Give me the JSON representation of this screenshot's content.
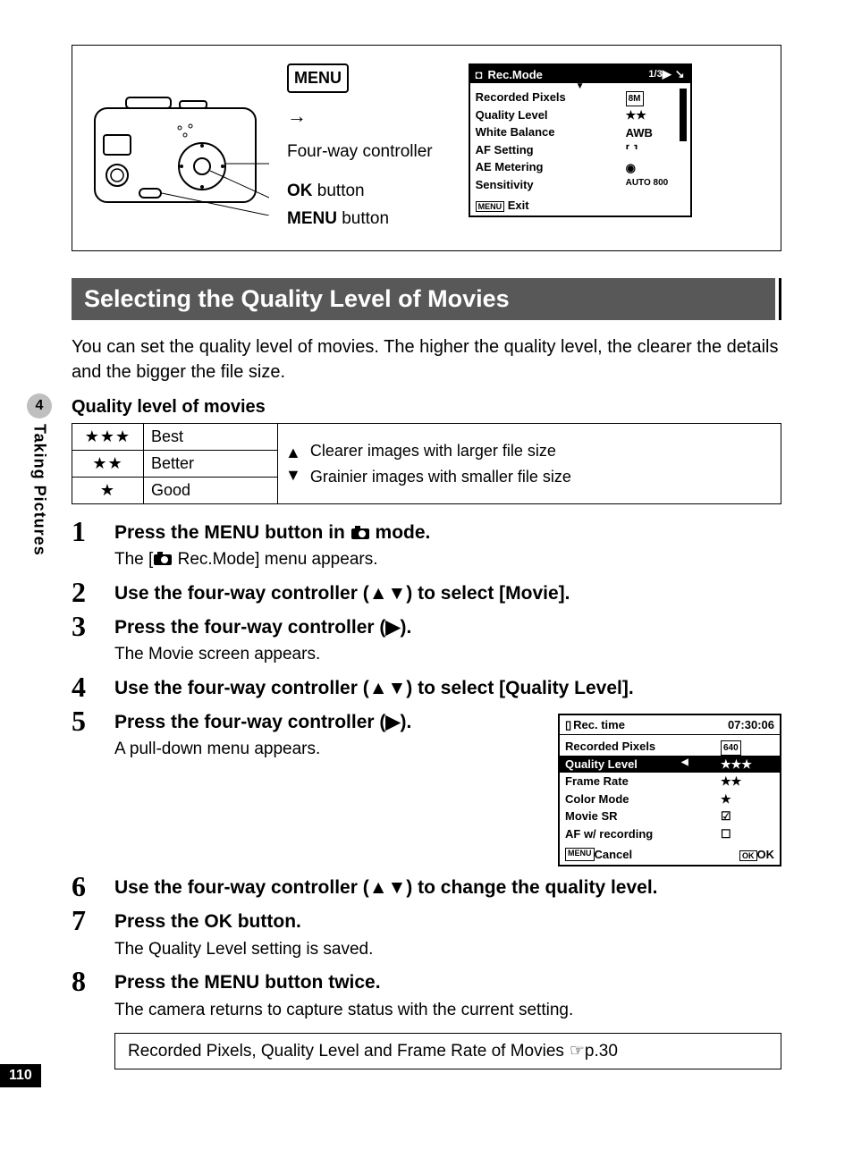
{
  "sideTab": {
    "chapter": "4",
    "label": "Taking Pictures"
  },
  "pageNumber": "110",
  "diagram": {
    "menuBadge": "MENU",
    "labels": {
      "fourWay": "Four-way controller",
      "okBold": "OK",
      "okRest": " button",
      "menuBold": "MENU",
      "menuRest": " button"
    }
  },
  "lcd1": {
    "title": "Rec.Mode",
    "pageIndicator": "1/3",
    "rows": [
      {
        "l": "Recorded Pixels",
        "r": "8M",
        "badge": true
      },
      {
        "l": "Quality Level",
        "r": "★★"
      },
      {
        "l": "White Balance",
        "r": "AWB"
      },
      {
        "l": "AF Setting",
        "r": "⸢ ⸣"
      },
      {
        "l": "AE Metering",
        "r": "◉"
      },
      {
        "l": "Sensitivity",
        "r": "AUTO 800"
      }
    ],
    "footer": {
      "badge": "MENU",
      "text": "Exit"
    }
  },
  "heading": "Selecting the Quality Level of Movies",
  "intro": "You can set the quality level of movies. The higher the quality level, the clearer the details and the bigger the file size.",
  "subhead": "Quality level of movies",
  "qualityTable": {
    "rows": [
      {
        "stars": "★★★",
        "label": "Best"
      },
      {
        "stars": "★★",
        "label": "Better"
      },
      {
        "stars": "★",
        "label": "Good"
      }
    ],
    "topText": "Clearer images with larger file size",
    "bottomText": "Grainier images with smaller file size"
  },
  "steps": [
    {
      "n": "1",
      "title_parts": [
        "Press the ",
        "MENU",
        " button in ",
        "CAMICON",
        " mode."
      ],
      "desc_parts": [
        "The [",
        "CAMICON",
        " Rec.Mode] menu appears."
      ]
    },
    {
      "n": "2",
      "title_parts": [
        "Use the four-way controller (▲▼) to select [Movie]."
      ]
    },
    {
      "n": "3",
      "title_parts": [
        "Press the four-way controller (▶)."
      ],
      "desc": "The Movie screen appears."
    },
    {
      "n": "4",
      "title_parts": [
        "Use the four-way controller (▲▼) to select [Quality Level]."
      ]
    },
    {
      "n": "5",
      "title_parts": [
        "Press the four-way controller (▶)."
      ],
      "desc": "A pull-down menu appears."
    },
    {
      "n": "6",
      "title_parts": [
        "Use the four-way controller (▲▼) to change the quality level."
      ]
    },
    {
      "n": "7",
      "title_parts": [
        "Press the ",
        "OK",
        " button."
      ],
      "desc": "The Quality Level setting is saved."
    },
    {
      "n": "8",
      "title_parts": [
        "Press the ",
        "MENU",
        " button twice."
      ],
      "desc": "The camera returns to capture status with the current setting."
    }
  ],
  "lcd2": {
    "headerLeft": "Rec. time",
    "headerRight": "07:30:06",
    "rows": [
      {
        "l": "Recorded Pixels",
        "r": "640",
        "badge": true
      },
      {
        "l": "Quality Level",
        "r": "★★★",
        "hl": true
      },
      {
        "l": "Frame Rate",
        "r": "★★"
      },
      {
        "l": "Color Mode",
        "r": "★"
      },
      {
        "l": "Movie SR",
        "r": "☑"
      },
      {
        "l": "AF w/ recording",
        "r": "☐"
      }
    ],
    "footer": {
      "leftBadge": "MENU",
      "leftText": "Cancel",
      "rightBadge": "OK",
      "rightText": "OK"
    }
  },
  "refBox": {
    "text": "Recorded Pixels, Quality Level and Frame Rate of Movies ",
    "ref": "☞p.30"
  }
}
